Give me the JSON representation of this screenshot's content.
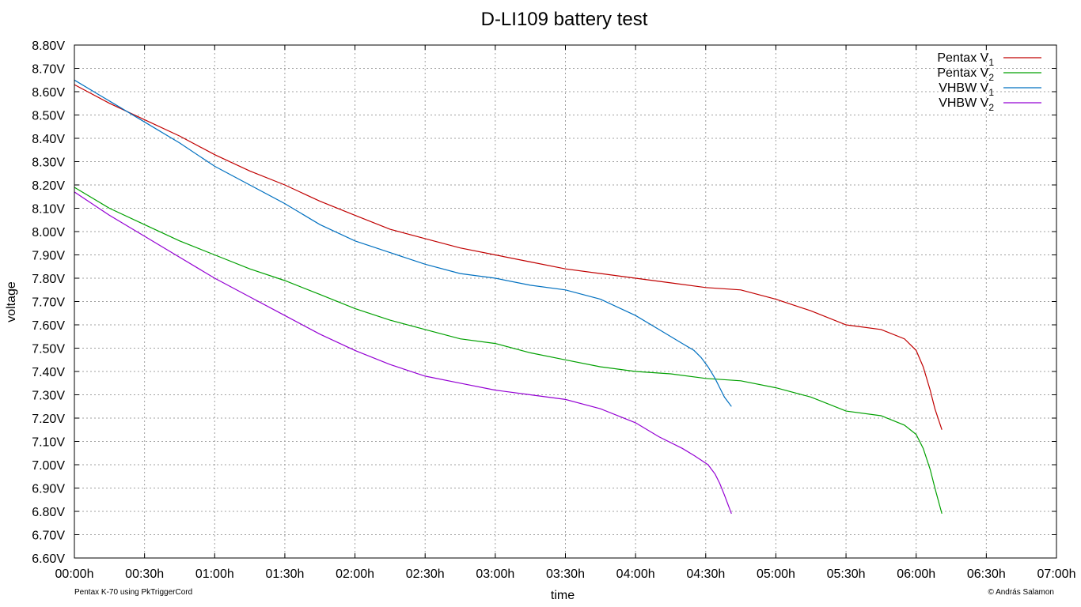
{
  "chart_data": {
    "type": "line",
    "title": "D-LI109 battery test",
    "xlabel": "time",
    "ylabel": "voltage",
    "xlim": [
      0,
      420
    ],
    "ylim": [
      6.6,
      8.8
    ],
    "x_unit": "minutes",
    "x_ticks": [
      {
        "value": 0,
        "label": "00:00h"
      },
      {
        "value": 30,
        "label": "00:30h"
      },
      {
        "value": 60,
        "label": "01:00h"
      },
      {
        "value": 90,
        "label": "01:30h"
      },
      {
        "value": 120,
        "label": "02:00h"
      },
      {
        "value": 150,
        "label": "02:30h"
      },
      {
        "value": 180,
        "label": "03:00h"
      },
      {
        "value": 210,
        "label": "03:30h"
      },
      {
        "value": 240,
        "label": "04:00h"
      },
      {
        "value": 270,
        "label": "04:30h"
      },
      {
        "value": 300,
        "label": "05:00h"
      },
      {
        "value": 330,
        "label": "05:30h"
      },
      {
        "value": 360,
        "label": "06:00h"
      },
      {
        "value": 390,
        "label": "06:30h"
      },
      {
        "value": 420,
        "label": "07:00h"
      }
    ],
    "y_ticks": [
      {
        "value": 6.6,
        "label": "6.60V"
      },
      {
        "value": 6.7,
        "label": "6.70V"
      },
      {
        "value": 6.8,
        "label": "6.80V"
      },
      {
        "value": 6.9,
        "label": "6.90V"
      },
      {
        "value": 7.0,
        "label": "7.00V"
      },
      {
        "value": 7.1,
        "label": "7.10V"
      },
      {
        "value": 7.2,
        "label": "7.20V"
      },
      {
        "value": 7.3,
        "label": "7.30V"
      },
      {
        "value": 7.4,
        "label": "7.40V"
      },
      {
        "value": 7.5,
        "label": "7.50V"
      },
      {
        "value": 7.6,
        "label": "7.60V"
      },
      {
        "value": 7.7,
        "label": "7.70V"
      },
      {
        "value": 7.8,
        "label": "7.80V"
      },
      {
        "value": 7.9,
        "label": "7.90V"
      },
      {
        "value": 8.0,
        "label": "8.00V"
      },
      {
        "value": 8.1,
        "label": "8.10V"
      },
      {
        "value": 8.2,
        "label": "8.20V"
      },
      {
        "value": 8.3,
        "label": "8.30V"
      },
      {
        "value": 8.4,
        "label": "8.40V"
      },
      {
        "value": 8.5,
        "label": "8.50V"
      },
      {
        "value": 8.6,
        "label": "8.60V"
      },
      {
        "value": 8.7,
        "label": "8.70V"
      },
      {
        "value": 8.8,
        "label": "8.80V"
      }
    ],
    "grid": true,
    "legend_position": "top-right",
    "series": [
      {
        "name": "Pentax V",
        "name_sub": "1",
        "color": "#c00000",
        "x": [
          0,
          15,
          30,
          45,
          60,
          75,
          90,
          105,
          120,
          135,
          150,
          165,
          180,
          195,
          210,
          225,
          240,
          255,
          270,
          285,
          300,
          315,
          330,
          345,
          355,
          360,
          363,
          366,
          368,
          371
        ],
        "y": [
          8.63,
          8.55,
          8.48,
          8.41,
          8.33,
          8.26,
          8.2,
          8.13,
          8.07,
          8.01,
          7.97,
          7.93,
          7.9,
          7.87,
          7.84,
          7.82,
          7.8,
          7.78,
          7.76,
          7.75,
          7.71,
          7.66,
          7.6,
          7.58,
          7.54,
          7.49,
          7.42,
          7.32,
          7.24,
          7.15
        ]
      },
      {
        "name": "Pentax V",
        "name_sub": "2",
        "color": "#00a000",
        "x": [
          0,
          15,
          30,
          45,
          60,
          75,
          90,
          105,
          120,
          135,
          150,
          165,
          180,
          195,
          210,
          225,
          240,
          255,
          270,
          285,
          300,
          315,
          330,
          345,
          355,
          360,
          363,
          366,
          368,
          371
        ],
        "y": [
          8.19,
          8.1,
          8.03,
          7.96,
          7.9,
          7.84,
          7.79,
          7.73,
          7.67,
          7.62,
          7.58,
          7.54,
          7.52,
          7.48,
          7.45,
          7.42,
          7.4,
          7.39,
          7.37,
          7.36,
          7.33,
          7.29,
          7.23,
          7.21,
          7.17,
          7.13,
          7.07,
          6.98,
          6.9,
          6.79
        ]
      },
      {
        "name": "VHBW V",
        "name_sub": "1",
        "color": "#0070c0",
        "x": [
          0,
          15,
          30,
          45,
          60,
          75,
          90,
          105,
          120,
          135,
          150,
          165,
          180,
          195,
          210,
          225,
          240,
          250,
          260,
          265,
          268,
          271,
          274,
          276,
          278,
          281
        ],
        "y": [
          8.65,
          8.56,
          8.47,
          8.38,
          8.28,
          8.2,
          8.12,
          8.03,
          7.96,
          7.91,
          7.86,
          7.82,
          7.8,
          7.77,
          7.75,
          7.71,
          7.64,
          7.58,
          7.52,
          7.49,
          7.46,
          7.42,
          7.37,
          7.33,
          7.29,
          7.25
        ]
      },
      {
        "name": "VHBW V",
        "name_sub": "2",
        "color": "#9400d3",
        "x": [
          0,
          15,
          30,
          45,
          60,
          75,
          90,
          105,
          120,
          135,
          150,
          165,
          180,
          195,
          210,
          225,
          240,
          250,
          260,
          265,
          268,
          271,
          274,
          276,
          278,
          281
        ],
        "y": [
          8.17,
          8.07,
          7.98,
          7.89,
          7.8,
          7.72,
          7.64,
          7.56,
          7.49,
          7.43,
          7.38,
          7.35,
          7.32,
          7.3,
          7.28,
          7.24,
          7.18,
          7.12,
          7.07,
          7.04,
          7.02,
          7.0,
          6.96,
          6.92,
          6.87,
          6.79
        ]
      }
    ]
  },
  "footer": {
    "left_note": "Pentax K-70 using PkTriggerCord",
    "right_note": "© András Salamon"
  }
}
